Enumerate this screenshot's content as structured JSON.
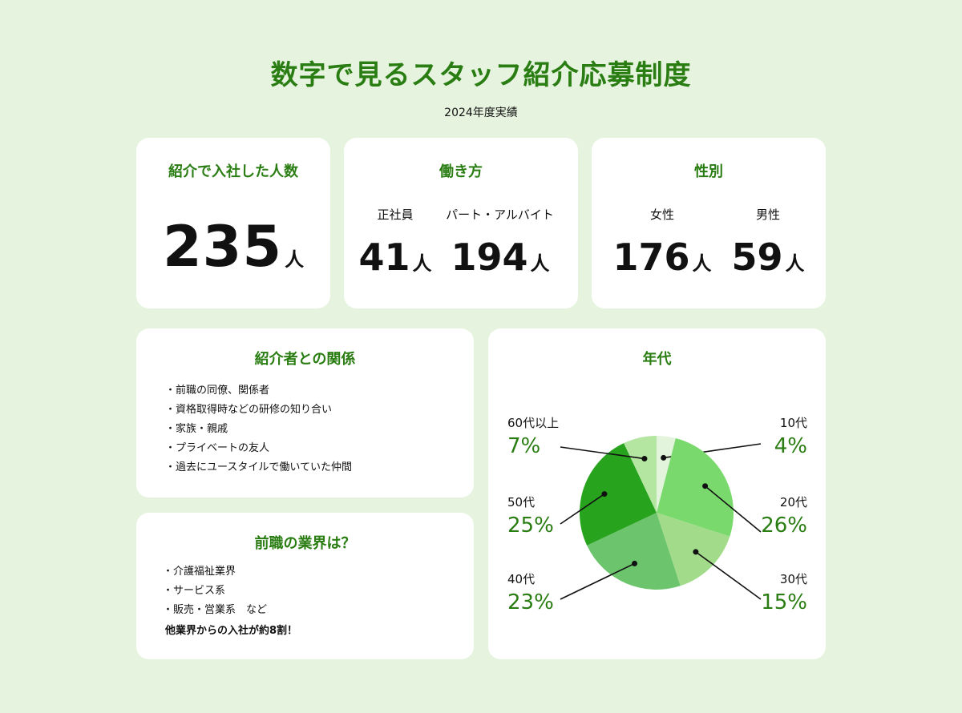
{
  "title": "数字で見るスタッフ紹介応募制度",
  "subtitle": "2024年度実績",
  "total_card": {
    "heading": "紹介で入社した人数",
    "value": "235",
    "unit": "人"
  },
  "work_style_card": {
    "heading": "働き方",
    "items": [
      {
        "label": "正社員",
        "value": "41",
        "unit": "人"
      },
      {
        "label": "パート・アルバイト",
        "value": "194",
        "unit": "人"
      }
    ]
  },
  "gender_card": {
    "heading": "性別",
    "items": [
      {
        "label": "女性",
        "value": "176",
        "unit": "人"
      },
      {
        "label": "男性",
        "value": "59",
        "unit": "人"
      }
    ]
  },
  "relation_card": {
    "heading": "紹介者との関係",
    "items": [
      "前職の同僚、関係者",
      "資格取得時などの研修の知り合い",
      "家族・親戚",
      "プライベートの友人",
      "過去にユースタイルで働いていた仲間"
    ]
  },
  "industry_card": {
    "heading": "前職の業界は？",
    "items": [
      "介護福祉業界",
      "サービス系",
      "販売・営業系　など"
    ],
    "note": "他業界からの入社が約8割！"
  },
  "chart_data": {
    "type": "pie",
    "title": "年代",
    "categories": [
      "10代",
      "20代",
      "30代",
      "40代",
      "50代",
      "60代以上"
    ],
    "values": [
      4,
      26,
      15,
      23,
      25,
      7
    ],
    "value_labels": [
      "4%",
      "26%",
      "15%",
      "23%",
      "25%",
      "7%"
    ],
    "colors": [
      "#e3f4dc",
      "#7ad96c",
      "#a2dc8a",
      "#6cc46c",
      "#28a31e",
      "#b4e6a2"
    ],
    "label_color": "#2a7d12"
  }
}
